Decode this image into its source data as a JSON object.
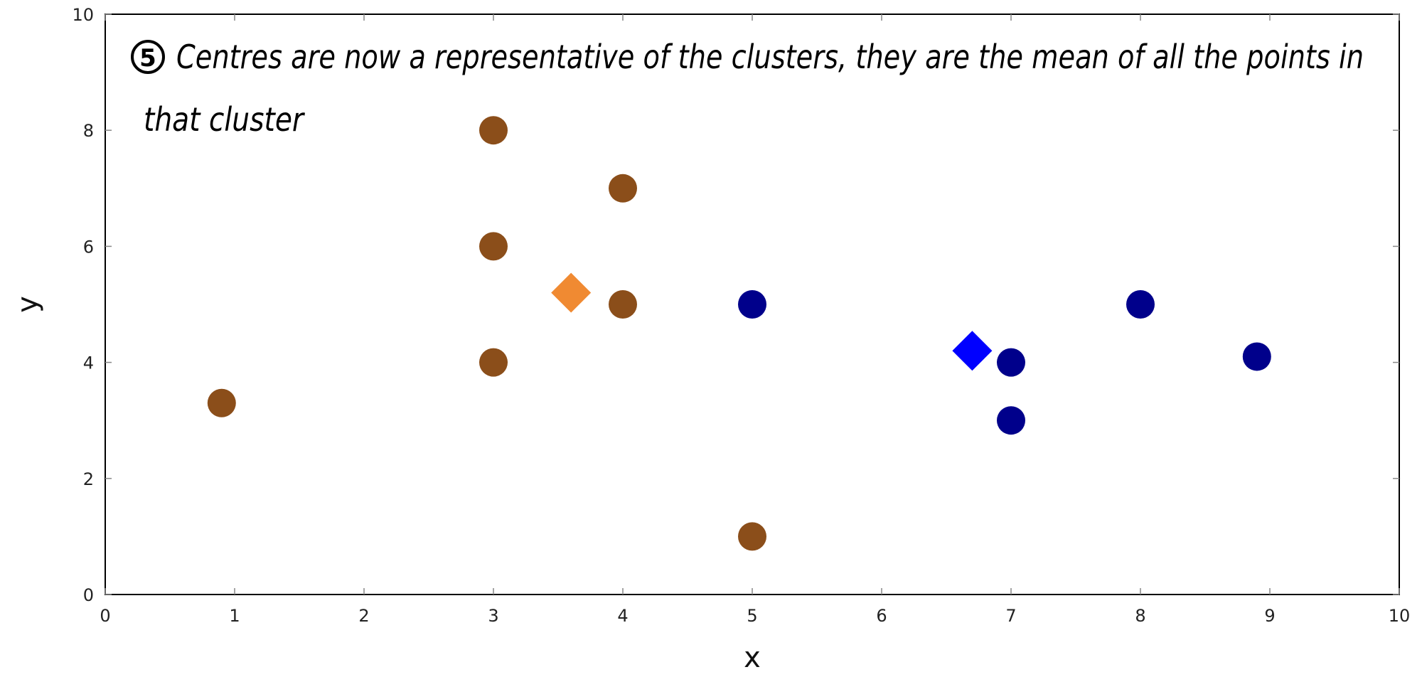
{
  "chart_data": {
    "type": "scatter",
    "title": "",
    "xlabel": "x",
    "ylabel": "y",
    "xlim": [
      0,
      10
    ],
    "ylim": [
      0,
      10
    ],
    "xticks": [
      0,
      1,
      2,
      3,
      4,
      5,
      6,
      7,
      8,
      9,
      10
    ],
    "yticks": [
      0,
      2,
      4,
      6,
      8,
      10
    ],
    "grid": false,
    "legend": "none",
    "annotation": {
      "marker": "5",
      "line1": "Centres are now a representative of the clusters, they are the mean of all the points in",
      "line2": "that cluster"
    },
    "series": [
      {
        "marker": "circle",
        "color": "#8B4E1A",
        "points": [
          [
            0.9,
            3.3
          ],
          [
            3,
            8
          ],
          [
            3,
            6
          ],
          [
            3,
            4
          ],
          [
            4,
            7
          ],
          [
            4,
            5
          ],
          [
            5,
            1
          ]
        ]
      },
      {
        "marker": "circle",
        "color": "#00008B",
        "points": [
          [
            5,
            5
          ],
          [
            7,
            4
          ],
          [
            7,
            3
          ],
          [
            8,
            5
          ],
          [
            8.9,
            4.1
          ]
        ]
      },
      {
        "marker": "diamond",
        "color": "#F08A32",
        "points": [
          [
            3.6,
            5.2
          ]
        ]
      },
      {
        "marker": "diamond",
        "color": "#0000FF",
        "points": [
          [
            6.7,
            4.2
          ]
        ]
      }
    ]
  }
}
